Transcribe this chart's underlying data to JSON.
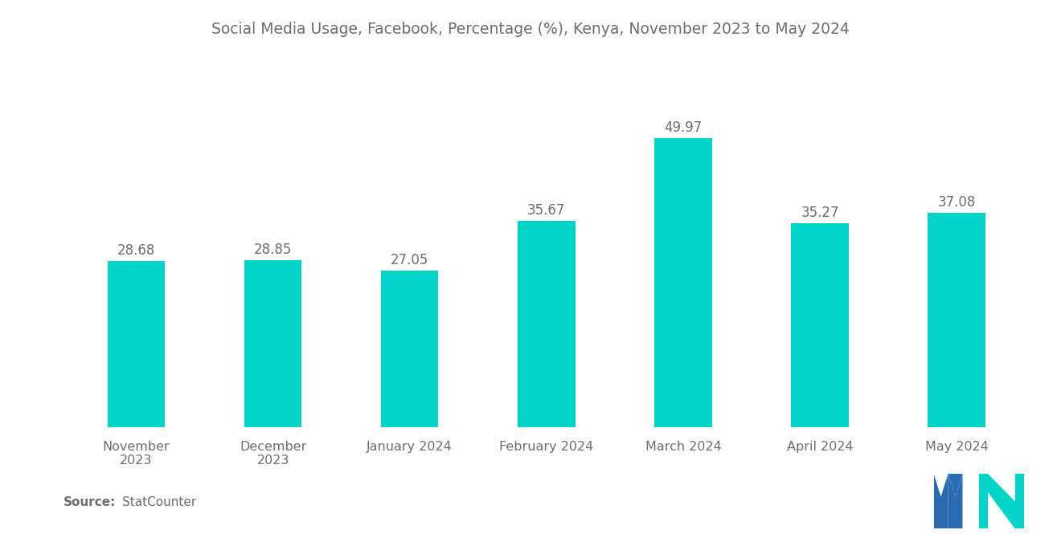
{
  "title": "Social Media Usage, Facebook, Percentage (%), Kenya, November 2023 to May 2024",
  "categories": [
    "November\n2023",
    "December\n2023",
    "January 2024",
    "February 2024",
    "March 2024",
    "April 2024",
    "May 2024"
  ],
  "values": [
    28.68,
    28.85,
    27.05,
    35.67,
    49.97,
    35.27,
    37.08
  ],
  "bar_color": "#00D4C8",
  "background_color": "#ffffff",
  "title_fontsize": 13.5,
  "label_fontsize": 11.5,
  "value_fontsize": 12,
  "source_label": "Source:",
  "source_value": "StatCounter",
  "ylim": [
    0,
    60
  ],
  "bar_width": 0.42,
  "text_color": "#6d6d6d",
  "logo_blue": "#2B6CB0",
  "logo_teal": "#00D4C8"
}
